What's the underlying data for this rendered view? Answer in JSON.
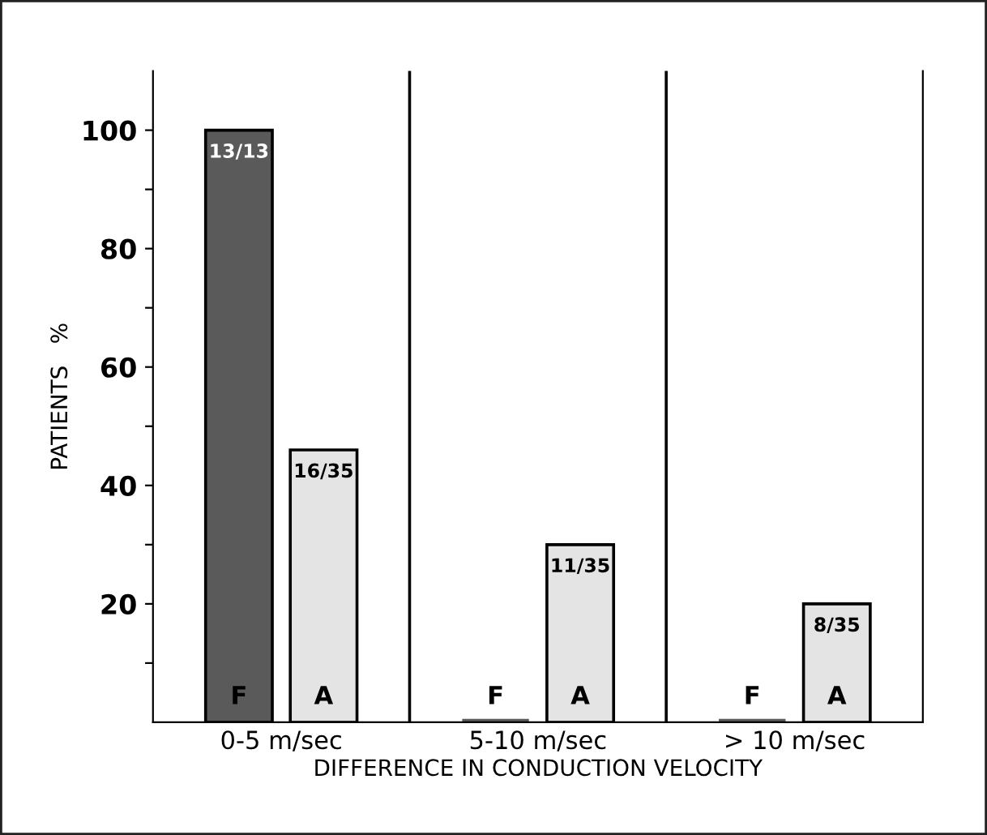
{
  "chart_data": {
    "type": "bar",
    "xlabel": "DIFFERENCE IN CONDUCTION VELOCITY",
    "ylabel": "PATIENTS   %",
    "categories": [
      "0-5 m/sec",
      "5-10 m/sec",
      "> 10 m/sec"
    ],
    "series": [
      {
        "name": "F",
        "color": "#5a5a5a",
        "values": [
          100,
          0,
          0
        ],
        "value_labels": [
          "13/13",
          null,
          null
        ]
      },
      {
        "name": "A",
        "color": "#e4e4e4",
        "values": [
          46,
          30,
          20
        ],
        "value_labels": [
          "16/35",
          "11/35",
          "8/35"
        ]
      }
    ],
    "ylim": [
      0,
      110
    ],
    "yticks": [
      {
        "value": 10,
        "label": null
      },
      20,
      {
        "value": 30,
        "label": null
      },
      40,
      {
        "value": 50,
        "label": null
      },
      60,
      {
        "value": 70,
        "label": null
      },
      80,
      {
        "value": 90,
        "label": null
      },
      100
    ],
    "grid": false,
    "legend": false
  }
}
